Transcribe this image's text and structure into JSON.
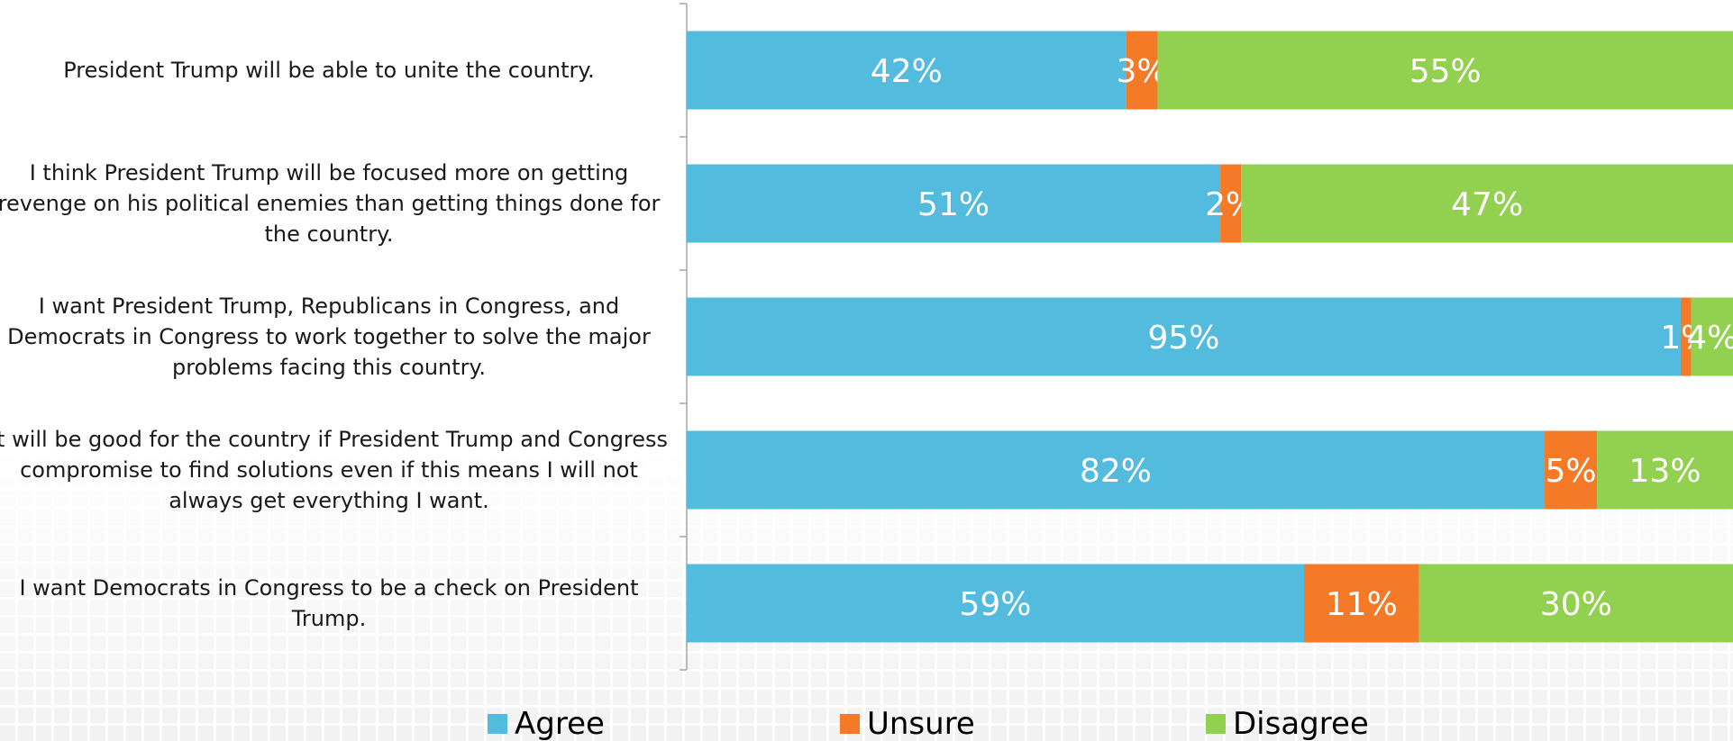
{
  "chart_data": {
    "type": "bar",
    "orientation": "horizontal",
    "stacked": "percent",
    "categories": [
      [
        "President Trump will be able to unite the country."
      ],
      [
        "I think President Trump will be focused more on getting",
        "revenge on his political enemies than getting things done for",
        "the country."
      ],
      [
        "I want President Trump, Republicans in Congress, and",
        "Democrats in Congress to work together to solve the major",
        "problems facing this country."
      ],
      [
        "It will be good for the country if President Trump and Congress",
        "compromise to find solutions even if this means I will not",
        "always get everything I want."
      ],
      [
        "I want Democrats in Congress to be a check on President",
        "Trump."
      ]
    ],
    "series": [
      {
        "name": "Agree",
        "color": "#52bbde",
        "values": [
          42,
          51,
          95,
          82,
          59
        ]
      },
      {
        "name": "Unsure",
        "color": "#f47a27",
        "values": [
          3,
          2,
          1,
          5,
          11
        ]
      },
      {
        "name": "Disagree",
        "color": "#92d050",
        "values": [
          55,
          47,
          4,
          13,
          30
        ]
      }
    ],
    "value_suffix": "%",
    "xlim": [
      0,
      100
    ],
    "legend": "bottom",
    "grid": false,
    "title": "",
    "xlabel": "",
    "ylabel": ""
  }
}
